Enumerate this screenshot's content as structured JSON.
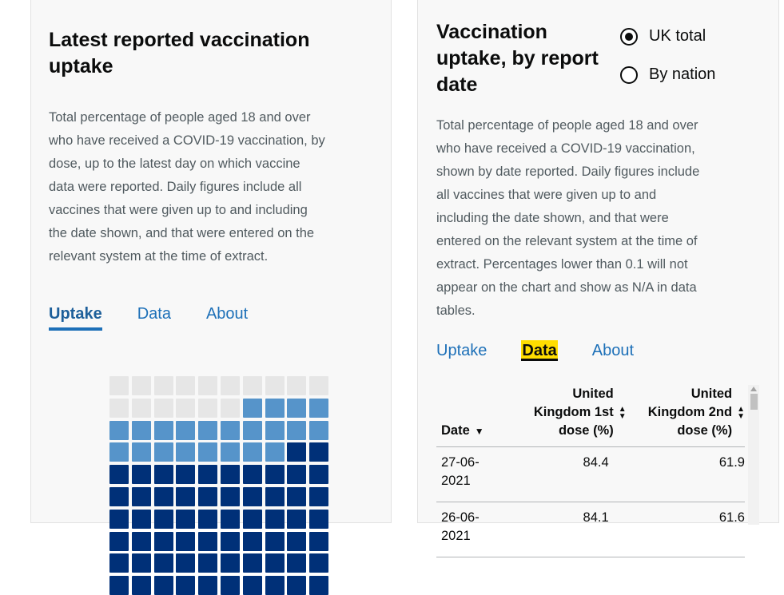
{
  "left": {
    "title_line1": "Latest reported vaccination",
    "title_line2": "uptake",
    "description": [
      "Total percentage of people aged 18 and over",
      "who have received a COVID-19 vaccination, by",
      "dose, up to the latest day on which vaccine",
      "data were reported. Daily figures include all",
      "vaccines that were given up to and including",
      "the date shown, and that were entered on the",
      "relevant system at the time of extract."
    ],
    "tabs": [
      "Uptake",
      "Data",
      "About"
    ],
    "active_tab": "Uptake",
    "waffle": {
      "second_dose_percent": 61.9,
      "first_dose_percent": 84.4,
      "colors": {
        "none": "#e6e6e6",
        "first": "#5694ca",
        "second": "#003078"
      }
    }
  },
  "right": {
    "title_lines": [
      "Vaccination",
      "uptake, by report",
      "date"
    ],
    "radios": [
      {
        "label": "UK total",
        "checked": true
      },
      {
        "label": "By nation",
        "checked": false
      }
    ],
    "description": [
      "Total percentage of people aged 18 and over",
      "who have received a COVID-19 vaccination,",
      "shown by date reported. Daily figures include",
      "all vaccines that were given up to and",
      "including the date shown, and that were",
      "entered on the relevant system at the time of",
      "extract. Percentages lower than 0.1 will not",
      "appear on the chart and show as N/A in data",
      "tables."
    ],
    "tabs": [
      "Uptake",
      "Data",
      "About"
    ],
    "active_tab": "Data",
    "table": {
      "headers": {
        "date": "Date",
        "first_lines": [
          "United",
          "Kingdom 1st",
          "dose (%)"
        ],
        "second_lines": [
          "United",
          "Kingdom 2nd",
          "dose (%)"
        ]
      },
      "rows": [
        {
          "date_lines": [
            "27-06-",
            "2021"
          ],
          "first": "84.4",
          "second": "61.9"
        },
        {
          "date_lines": [
            "26-06-",
            "2021"
          ],
          "first": "84.1",
          "second": "61.6"
        }
      ]
    }
  }
}
